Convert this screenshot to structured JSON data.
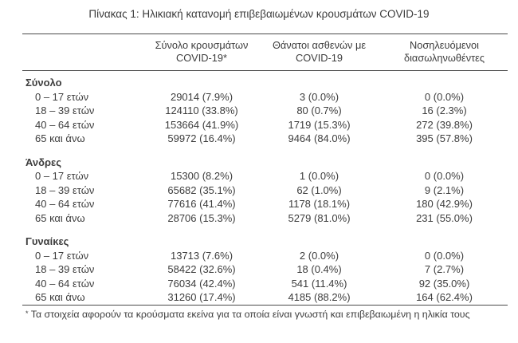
{
  "title": "Πίνακας 1: Ηλικιακή κατανομή επιβεβαιωμένων κρουσμάτων COVID-19",
  "table": {
    "headers": [
      {
        "line1": "Σύνολο κρουσμάτων",
        "line2": "COVID-19*"
      },
      {
        "line1": "Θάνατοι ασθενών με",
        "line2": "COVID-19"
      },
      {
        "line1": "Νοσηλευόμενοι",
        "line2": "διασωληνωθέντες"
      }
    ],
    "sections": [
      {
        "label": "Σύνολο",
        "rows": [
          {
            "label": "0 – 17 ετών",
            "cases": "29014 (7.9%)",
            "deaths": "3 (0.0%)",
            "intubated": "0 (0.0%)"
          },
          {
            "label": "18 – 39 ετών",
            "cases": "124110 (33.8%)",
            "deaths": "80 (0.7%)",
            "intubated": "16 (2.3%)"
          },
          {
            "label": "40 – 64 ετών",
            "cases": "153664 (41.9%)",
            "deaths": "1719 (15.3%)",
            "intubated": "272 (39.8%)"
          },
          {
            "label": "65 και άνω",
            "cases": "59972 (16.4%)",
            "deaths": "9464 (84.0%)",
            "intubated": "395 (57.8%)"
          }
        ]
      },
      {
        "label": "Άνδρες",
        "rows": [
          {
            "label": "0 – 17 ετών",
            "cases": "15300 (8.2%)",
            "deaths": "1 (0.0%)",
            "intubated": "0 (0.0%)"
          },
          {
            "label": "18 – 39 ετών",
            "cases": "65682 (35.1%)",
            "deaths": "62 (1.0%)",
            "intubated": "9 (2.1%)"
          },
          {
            "label": "40 – 64 ετών",
            "cases": "77616 (41.4%)",
            "deaths": "1178 (18.1%)",
            "intubated": "180 (42.9%)"
          },
          {
            "label": "65 και άνω",
            "cases": "28706 (15.3%)",
            "deaths": "5279 (81.0%)",
            "intubated": "231 (55.0%)"
          }
        ]
      },
      {
        "label": "Γυναίκες",
        "rows": [
          {
            "label": "0 – 17 ετών",
            "cases": "13713 (7.6%)",
            "deaths": "2 (0.0%)",
            "intubated": "0 (0.0%)"
          },
          {
            "label": "18 – 39 ετών",
            "cases": "58422 (32.6%)",
            "deaths": "18 (0.4%)",
            "intubated": "7 (2.7%)"
          },
          {
            "label": "40 – 64 ετών",
            "cases": "76034 (42.4%)",
            "deaths": "541 (11.4%)",
            "intubated": "92 (35.0%)"
          },
          {
            "label": "65 και άνω",
            "cases": "31260 (17.4%)",
            "deaths": "4185 (88.2%)",
            "intubated": "164 (62.4%)"
          }
        ]
      }
    ]
  },
  "footnote": {
    "asterisk": "*",
    "text": " Τα στοιχεία αφορούν τα κρούσματα εκείνα για τα οποία είναι γνωστή και επιβεβαιωμένη η ηλικία τους"
  },
  "colors": {
    "text": "#3d3d3d",
    "border": "#4a4a4a",
    "background": "#ffffff"
  }
}
